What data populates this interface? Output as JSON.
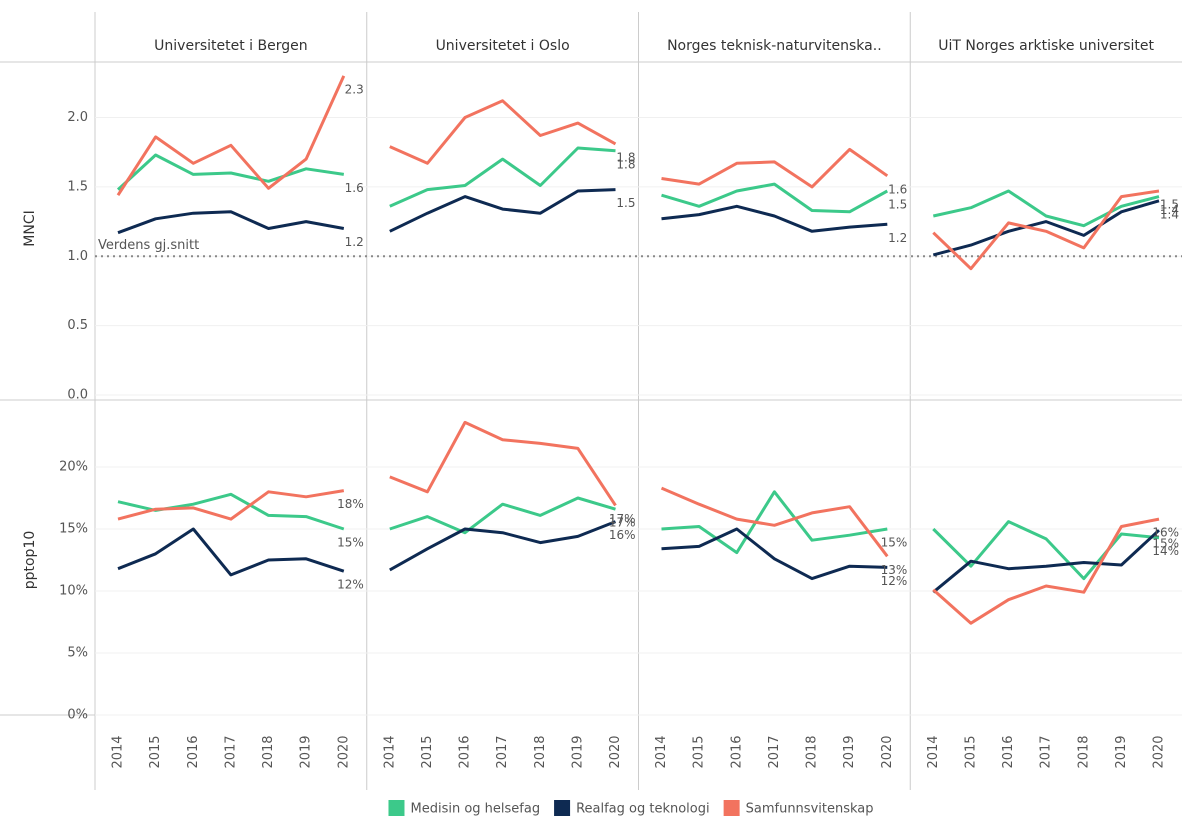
{
  "chart_data": {
    "type": "line",
    "columns": [
      "Universitetet i Bergen",
      "Universitetet i Oslo",
      "Norges teknisk-naturvitenska..",
      "UiT Norges arktiske universitet"
    ],
    "categories": [
      "2014",
      "2015",
      "2016",
      "2017",
      "2018",
      "2019",
      "2020"
    ],
    "series": [
      {
        "name": "Medisin og helsefag",
        "color": "#3cc98a"
      },
      {
        "name": "Realfag og teknologi",
        "color": "#0e2a52"
      },
      {
        "name": "Samfunnsvitenskap",
        "color": "#f2735f"
      }
    ],
    "rows": [
      {
        "ylabel": "MNCI",
        "ylim": [
          0,
          2.4
        ],
        "yticks": [
          {
            "value": 0,
            "label": "0.0"
          },
          0.5,
          {
            "value": 1,
            "label": "1.0"
          },
          1.5,
          {
            "value": 2,
            "label": "2.0"
          }
        ],
        "reference_line": {
          "value": 1,
          "label": "Verdens gj.snitt"
        },
        "panels": [
          {
            "series": [
              {
                "values": [
                  1.48,
                  1.73,
                  1.59,
                  1.6,
                  1.54,
                  1.63,
                  1.59
                ],
                "value_labels": [
                  null,
                  null,
                  null,
                  null,
                  null,
                  null,
                  "1.6"
                ]
              },
              {
                "values": [
                  1.17,
                  1.27,
                  1.31,
                  1.32,
                  1.2,
                  1.25,
                  1.2
                ],
                "value_labels": [
                  null,
                  null,
                  null,
                  null,
                  null,
                  null,
                  "1.2"
                ]
              },
              {
                "values": [
                  1.44,
                  1.86,
                  1.67,
                  1.8,
                  1.49,
                  1.7,
                  2.3
                ],
                "value_labels": [
                  null,
                  null,
                  null,
                  null,
                  null,
                  null,
                  "2.3"
                ]
              }
            ]
          },
          {
            "series": [
              {
                "values": [
                  1.36,
                  1.48,
                  1.51,
                  1.7,
                  1.51,
                  1.78,
                  1.76
                ],
                "value_labels": [
                  null,
                  null,
                  null,
                  null,
                  null,
                  null,
                  "1.8"
                ]
              },
              {
                "values": [
                  1.18,
                  1.31,
                  1.43,
                  1.34,
                  1.31,
                  1.47,
                  1.48
                ],
                "value_labels": [
                  null,
                  null,
                  null,
                  null,
                  null,
                  null,
                  "1.5"
                ]
              },
              {
                "values": [
                  1.79,
                  1.67,
                  2.0,
                  2.12,
                  1.87,
                  1.96,
                  1.81
                ],
                "value_labels": [
                  null,
                  null,
                  null,
                  null,
                  null,
                  null,
                  "1.8"
                ]
              }
            ]
          },
          {
            "series": [
              {
                "values": [
                  1.44,
                  1.36,
                  1.47,
                  1.52,
                  1.33,
                  1.32,
                  1.47
                ],
                "value_labels": [
                  null,
                  null,
                  null,
                  null,
                  null,
                  null,
                  "1.5"
                ]
              },
              {
                "values": [
                  1.27,
                  1.3,
                  1.36,
                  1.29,
                  1.18,
                  1.21,
                  1.23
                ],
                "value_labels": [
                  null,
                  null,
                  null,
                  null,
                  null,
                  null,
                  "1.2"
                ]
              },
              {
                "values": [
                  1.56,
                  1.52,
                  1.67,
                  1.68,
                  1.5,
                  1.77,
                  1.58
                ],
                "value_labels": [
                  null,
                  null,
                  null,
                  null,
                  null,
                  null,
                  "1.6"
                ]
              }
            ]
          },
          {
            "series": [
              {
                "values": [
                  1.29,
                  1.35,
                  1.47,
                  1.29,
                  1.22,
                  1.36,
                  1.43
                ],
                "value_labels": [
                  null,
                  null,
                  null,
                  null,
                  null,
                  null,
                  "1.4"
                ]
              },
              {
                "values": [
                  1.01,
                  1.08,
                  1.18,
                  1.25,
                  1.15,
                  1.32,
                  1.4
                ],
                "value_labels": [
                  null,
                  null,
                  null,
                  null,
                  null,
                  null,
                  "1.4"
                ]
              },
              {
                "values": [
                  1.17,
                  0.91,
                  1.24,
                  1.18,
                  1.06,
                  1.43,
                  1.47
                ],
                "value_labels": [
                  null,
                  null,
                  null,
                  null,
                  null,
                  null,
                  "1.5"
                ]
              }
            ]
          }
        ]
      },
      {
        "ylabel": "pptop10",
        "ylim": [
          0,
          25
        ],
        "yticks": [
          {
            "value": 0,
            "label": "0%"
          },
          {
            "value": 5,
            "label": "5%"
          },
          {
            "value": 10,
            "label": "10%"
          },
          {
            "value": 15,
            "label": "15%"
          },
          {
            "value": 20,
            "label": "20%"
          }
        ],
        "panels": [
          {
            "series": [
              {
                "values": [
                  17.2,
                  16.5,
                  17.0,
                  17.8,
                  16.1,
                  16.0,
                  15.0
                ],
                "value_labels": [
                  null,
                  null,
                  null,
                  null,
                  null,
                  null,
                  "15%"
                ]
              },
              {
                "values": [
                  11.8,
                  13.0,
                  15.0,
                  11.3,
                  12.5,
                  12.6,
                  11.6
                ],
                "value_labels": [
                  null,
                  null,
                  null,
                  null,
                  null,
                  null,
                  "12%"
                ]
              },
              {
                "values": [
                  15.8,
                  16.6,
                  16.7,
                  15.8,
                  18.0,
                  17.6,
                  18.1
                ],
                "value_labels": [
                  null,
                  null,
                  null,
                  null,
                  null,
                  null,
                  "18%"
                ]
              }
            ]
          },
          {
            "series": [
              {
                "values": [
                  15.0,
                  16.0,
                  14.7,
                  17.0,
                  16.1,
                  17.5,
                  16.6
                ],
                "value_labels": [
                  null,
                  null,
                  null,
                  null,
                  null,
                  null,
                  "17%"
                ]
              },
              {
                "values": [
                  11.7,
                  13.4,
                  15.0,
                  14.7,
                  13.9,
                  14.4,
                  15.6
                ],
                "value_labels": [
                  null,
                  null,
                  null,
                  null,
                  null,
                  null,
                  "16%"
                ]
              },
              {
                "values": [
                  19.2,
                  18.0,
                  23.6,
                  22.2,
                  21.9,
                  21.5,
                  16.9
                ],
                "value_labels": [
                  null,
                  null,
                  null,
                  null,
                  null,
                  null,
                  "17%"
                ]
              }
            ]
          },
          {
            "series": [
              {
                "values": [
                  15.0,
                  15.2,
                  13.1,
                  18.0,
                  14.1,
                  14.5,
                  15.0
                ],
                "value_labels": [
                  null,
                  null,
                  null,
                  null,
                  null,
                  null,
                  "15%"
                ]
              },
              {
                "values": [
                  13.4,
                  13.6,
                  15.0,
                  12.6,
                  11.0,
                  12.0,
                  11.9
                ],
                "value_labels": [
                  null,
                  null,
                  null,
                  null,
                  null,
                  null,
                  "12%"
                ]
              },
              {
                "values": [
                  18.3,
                  17.0,
                  15.8,
                  15.3,
                  16.3,
                  16.8,
                  12.8
                ],
                "value_labels": [
                  null,
                  null,
                  null,
                  null,
                  null,
                  null,
                  "13%"
                ]
              }
            ]
          },
          {
            "series": [
              {
                "values": [
                  15.0,
                  12.0,
                  15.6,
                  14.2,
                  11.0,
                  14.6,
                  14.3
                ],
                "value_labels": [
                  null,
                  null,
                  null,
                  null,
                  null,
                  null,
                  "14%"
                ]
              },
              {
                "values": [
                  9.9,
                  12.4,
                  11.8,
                  12.0,
                  12.3,
                  12.1,
                  14.9
                ],
                "value_labels": [
                  null,
                  null,
                  null,
                  null,
                  null,
                  null,
                  "15%"
                ]
              },
              {
                "values": [
                  10.1,
                  7.4,
                  9.3,
                  10.4,
                  9.9,
                  15.2,
                  15.8
                ],
                "value_labels": [
                  null,
                  null,
                  null,
                  null,
                  null,
                  null,
                  "16%"
                ]
              }
            ]
          }
        ]
      }
    ]
  }
}
